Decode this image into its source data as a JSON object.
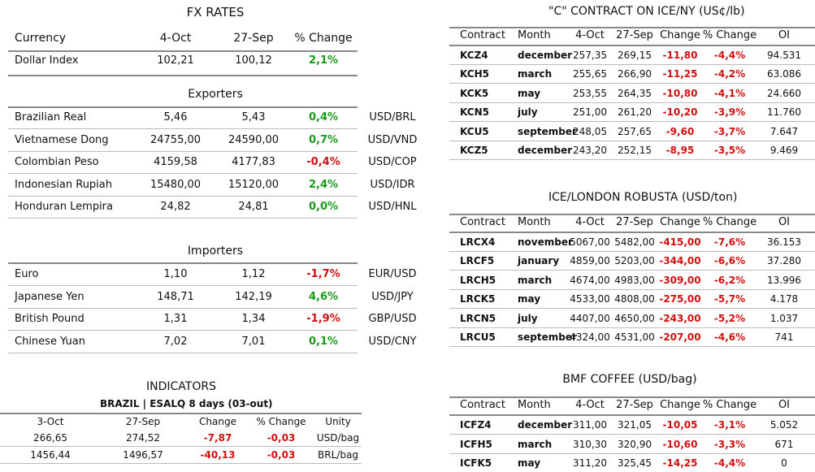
{
  "fx_rates": {
    "title": "FX RATES",
    "header": [
      "Currency",
      "4-Oct",
      "27-Sep",
      "% Change"
    ],
    "rows": [
      [
        "Dollar Index",
        "102,21",
        "100,12",
        "2,1%"
      ]
    ]
  },
  "exporters": {
    "title": "Exporters",
    "rows": [
      [
        "Brazilian Real",
        "5,46",
        "5,43",
        "0,4%",
        "USD/BRL"
      ],
      [
        "Vietnamese Dong",
        "24755,00",
        "24590,00",
        "0,7%",
        "USD/VND"
      ],
      [
        "Colombian Peso",
        "4159,58",
        "4177,83",
        "-0,4%",
        "USD/COP"
      ],
      [
        "Indonesian Rupiah",
        "15480,00",
        "15120,00",
        "2,4%",
        "USD/IDR"
      ],
      [
        "Honduran Lempira",
        "24,82",
        "24,81",
        "0,0%",
        "USD/HNL"
      ]
    ]
  },
  "importers": {
    "title": "Importers",
    "rows": [
      [
        "Euro",
        "1,10",
        "1,12",
        "-1,7%",
        "EUR/USD"
      ],
      [
        "Japanese Yen",
        "148,71",
        "142,19",
        "4,6%",
        "USD/JPY"
      ],
      [
        "British Pound",
        "1,31",
        "1,34",
        "-1,9%",
        "GBP/USD"
      ],
      [
        "Chinese Yuan",
        "7,02",
        "7,01",
        "0,1%",
        "USD/CNY"
      ]
    ]
  },
  "indicators": {
    "title": "INDICATORS",
    "subtitle": "BRAZIL | ESALQ 8 days (03-out)",
    "header": [
      "3-Oct",
      "27-Sep",
      "Change",
      "% Change",
      "Unity"
    ],
    "rows": [
      [
        "266,65",
        "274,52",
        "-7,87",
        "-0,03",
        "USD/bag"
      ],
      [
        "1456,44",
        "1496,57",
        "-40,13",
        "-0,03",
        "BRL/bag"
      ]
    ]
  },
  "arabica": {
    "title": "\"C\" CONTRACT ON ICE/NY (US¢/lb)",
    "header": [
      "Contract",
      "Month",
      "4-Oct",
      "27-Sep",
      "Change",
      "% Change",
      "OI"
    ],
    "rows": [
      [
        "KCZ4",
        "december",
        "257,35",
        "269,15",
        "-11,80",
        "-4,4%",
        "94.531"
      ],
      [
        "KCH5",
        "march",
        "255,65",
        "266,90",
        "-11,25",
        "-4,2%",
        "63.086"
      ],
      [
        "KCK5",
        "may",
        "253,55",
        "264,35",
        "-10,80",
        "-4,1%",
        "24.660"
      ],
      [
        "KCN5",
        "july",
        "251,00",
        "261,20",
        "-10,20",
        "-3,9%",
        "11.760"
      ],
      [
        "KCU5",
        "september",
        "248,05",
        "257,65",
        "-9,60",
        "-3,7%",
        "7.647"
      ],
      [
        "KCZ5",
        "december",
        "243,20",
        "252,15",
        "-8,95",
        "-3,5%",
        "9.469"
      ]
    ]
  },
  "robusta": {
    "title": "ICE/LONDON ROBUSTA (USD/ton)",
    "header": [
      "Contract",
      "Month",
      "4-Oct",
      "27-Sep",
      "Change",
      "% Change",
      "OI"
    ],
    "rows": [
      [
        "LRCX4",
        "november",
        "5067,00",
        "5482,00",
        "-415,00",
        "-7,6%",
        "36.153"
      ],
      [
        "LRCF5",
        "january",
        "4859,00",
        "5203,00",
        "-344,00",
        "-6,6%",
        "37.280"
      ],
      [
        "LRCH5",
        "march",
        "4674,00",
        "4983,00",
        "-309,00",
        "-6,2%",
        "13.996"
      ],
      [
        "LRCK5",
        "may",
        "4533,00",
        "4808,00",
        "-275,00",
        "-5,7%",
        "4.178"
      ],
      [
        "LRCN5",
        "july",
        "4407,00",
        "4650,00",
        "-243,00",
        "-5,2%",
        "1.037"
      ],
      [
        "LRCU5",
        "september",
        "4324,00",
        "4531,00",
        "-207,00",
        "-4,6%",
        "741"
      ]
    ]
  },
  "bmf": {
    "title": "BMF COFFEE (USD/bag)",
    "header": [
      "Contract",
      "Month",
      "4-Oct",
      "27-Sep",
      "Change",
      "% Change",
      "OI"
    ],
    "rows": [
      [
        "ICFZ4",
        "december",
        "311,00",
        "321,05",
        "-10,05",
        "-3,1%",
        "5.052"
      ],
      [
        "ICFH5",
        "march",
        "310,30",
        "320,90",
        "-10,60",
        "-3,3%",
        "671"
      ],
      [
        "ICFK5",
        "may",
        "311,20",
        "325,45",
        "-14,25",
        "-4,4%",
        "0"
      ]
    ]
  }
}
